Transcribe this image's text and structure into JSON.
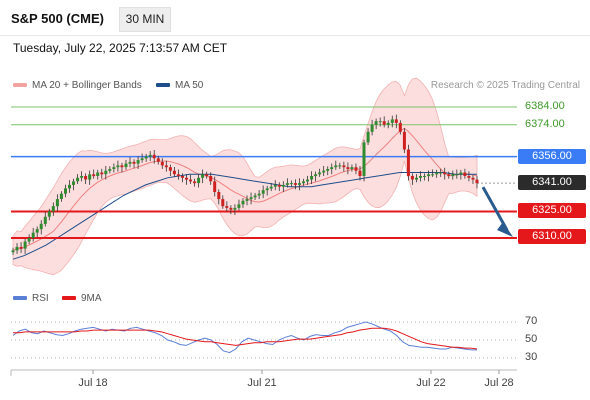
{
  "header": {
    "title": "S&P 500 (CME)",
    "timeframe": "30 MIN",
    "datetime": "Tuesday, July 22, 2025 7:13:57 AM CET"
  },
  "legend": {
    "main": [
      {
        "label": "MA 20 + Bollinger Bands",
        "color": "#f08080"
      },
      {
        "label": "MA 50",
        "color": "#1f4e8c"
      }
    ],
    "indicator": [
      {
        "label": "RSI",
        "color": "#5b7fd6"
      },
      {
        "label": "9MA",
        "color": "#e4171b"
      }
    ]
  },
  "credit": "Research © 2025 Trading Central",
  "price_levels": [
    {
      "value": "6384.00",
      "kind": "target",
      "color": "#5aae3c"
    },
    {
      "value": "6374.00",
      "kind": "target",
      "color": "#5aae3c"
    },
    {
      "value": "6356.00",
      "kind": "pivot",
      "color": "#3a7cf5"
    },
    {
      "value": "6341.00",
      "kind": "last",
      "color": "#2b2b2b"
    },
    {
      "value": "6325.00",
      "kind": "support",
      "color": "#e4171b"
    },
    {
      "value": "6310.00",
      "kind": "support",
      "color": "#e4171b"
    }
  ],
  "rsi_levels": [
    "70",
    "50",
    "30"
  ],
  "x_labels": [
    "Jul 18",
    "Jul 21",
    "Jul 22",
    "Jul 28"
  ],
  "chart_data": {
    "type": "candlestick",
    "title": "S&P 500 (CME)",
    "interval": "30 MIN",
    "price_range": [
      6300,
      6390
    ],
    "rsi_range": [
      25,
      75
    ],
    "candles_close_approx": [
      6303,
      6305,
      6304,
      6308,
      6310,
      6313,
      6315,
      6318,
      6322,
      6325,
      6328,
      6332,
      6335,
      6338,
      6340,
      6342,
      6344,
      6345,
      6343,
      6346,
      6345,
      6347,
      6346,
      6348,
      6349,
      6350,
      6351,
      6350,
      6352,
      6353,
      6352,
      6354,
      6355,
      6356,
      6357,
      6355,
      6353,
      6351,
      6350,
      6348,
      6346,
      6345,
      6344,
      6343,
      6342,
      6341,
      6344,
      6346,
      6345,
      6342,
      6336,
      6332,
      6328,
      6327,
      6326,
      6327,
      6329,
      6331,
      6332,
      6333,
      6334,
      6335,
      6337,
      6338,
      6339,
      6340,
      6339,
      6340,
      6341,
      6341,
      6340,
      6341,
      6342,
      6343,
      6345,
      6346,
      6347,
      6348,
      6349,
      6350,
      6351,
      6351,
      6350,
      6349,
      6350,
      6348,
      6345,
      6364,
      6370,
      6374,
      6376,
      6376,
      6374,
      6375,
      6377,
      6375,
      6370,
      6360,
      6345,
      6343,
      6344,
      6345,
      6345,
      6346,
      6346,
      6347,
      6347,
      6346,
      6345,
      6346,
      6346,
      6347,
      6345,
      6344,
      6343,
      6341
    ],
    "ma50_approx": [
      6298,
      6300,
      6303,
      6306,
      6310,
      6314,
      6318,
      6322,
      6326,
      6330,
      6334,
      6337,
      6340,
      6342,
      6344,
      6345,
      6346,
      6346,
      6346,
      6345,
      6344,
      6343,
      6342,
      6341,
      6340,
      6339,
      6339,
      6339,
      6340,
      6341,
      6342,
      6343,
      6344,
      6345,
      6346,
      6347,
      6347,
      6347,
      6347,
      6347,
      6346,
      6346,
      6346
    ],
    "series": [
      {
        "name": "MA 20 + Bollinger Bands"
      },
      {
        "name": "MA 50"
      },
      {
        "name": "RSI"
      },
      {
        "name": "9MA"
      }
    ],
    "rsi_values": [
      55,
      60,
      62,
      58,
      57,
      60,
      58,
      56,
      55,
      57,
      60,
      62,
      63,
      64,
      62,
      60,
      62,
      61,
      60,
      63,
      64,
      62,
      60,
      58,
      55,
      50,
      48,
      45,
      44,
      47,
      50,
      52,
      50,
      45,
      38,
      36,
      40,
      48,
      52,
      50,
      48,
      46,
      45,
      50,
      53,
      55,
      52,
      50,
      54,
      56,
      55,
      55,
      58,
      60,
      64,
      66,
      68,
      70,
      68,
      65,
      62,
      60,
      55,
      48,
      44,
      43,
      42,
      42,
      41,
      40,
      40,
      42,
      41,
      40,
      39,
      39
    ],
    "rsi_ma_values": [
      58,
      58,
      59,
      59,
      59,
      59,
      59,
      59,
      59,
      59,
      59,
      60,
      60,
      61,
      61,
      61,
      61,
      61,
      61,
      61,
      61,
      61,
      61,
      60,
      59,
      57,
      55,
      53,
      51,
      50,
      49,
      48,
      48,
      47,
      46,
      45,
      44,
      45,
      46,
      47,
      47,
      48,
      48,
      48,
      49,
      50,
      51,
      51,
      51,
      52,
      53,
      54,
      55,
      56,
      58,
      59,
      61,
      62,
      63,
      63,
      63,
      62,
      60,
      57,
      54,
      51,
      48,
      46,
      45,
      44,
      43,
      42,
      42,
      41,
      41,
      40
    ],
    "arrow": {
      "from": 6341,
      "to": 6310,
      "direction": "down"
    }
  }
}
